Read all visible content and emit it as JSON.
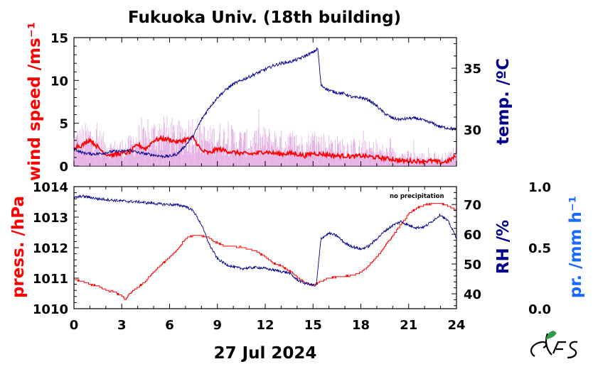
{
  "title": "Fukuoka Univ. (18th building)",
  "date_label": "27 Jul 2024",
  "note": "no precipitation",
  "colors": {
    "wind": "#ff0000",
    "wind_raw": "#dd99dd",
    "temp": "#00008b",
    "pressure": "#ff0000",
    "rh": "#00008b",
    "precip": "#1a6aff",
    "logo_green": "#2e9a4a"
  },
  "chart_data": [
    {
      "type": "line",
      "x_label": "",
      "x_range": [
        0,
        24
      ],
      "x_ticks": [
        0,
        3,
        6,
        9,
        12,
        15,
        18,
        21,
        24
      ],
      "grid": false,
      "legend": "none",
      "left_axis": {
        "label": "wind speed /ms⁻¹",
        "range": [
          0,
          15
        ],
        "ticks": [
          0,
          5,
          10,
          15
        ]
      },
      "right_axis": {
        "label": "temp. /ºC",
        "range": [
          27.0,
          37.5
        ],
        "ticks": [
          30,
          35
        ]
      },
      "series": [
        {
          "axis": "left",
          "style": "raw",
          "x": [
            0,
            0.5,
            1,
            1.5,
            2,
            2.5,
            3,
            3.5,
            4,
            4.5,
            5,
            5.5,
            6,
            6.5,
            7,
            7.5,
            8,
            8.5,
            9,
            9.5,
            10,
            10.5,
            11,
            11.5,
            12,
            12.5,
            13,
            13.5,
            14,
            14.5,
            15,
            15.5,
            16,
            16.5,
            17,
            17.5,
            18,
            18.5,
            19,
            19.5,
            20,
            20.5,
            21,
            21.5,
            22,
            22.5,
            23,
            23.5,
            24
          ],
          "values": [
            3.2,
            3.5,
            3.8,
            3.4,
            2.6,
            2.2,
            2.4,
            2.6,
            3.6,
            3.2,
            4.0,
            4.4,
            4.2,
            3.8,
            4.2,
            4.6,
            3.8,
            3.4,
            3.8,
            3.6,
            3.4,
            3.2,
            3.0,
            3.2,
            3.4,
            3.2,
            3.0,
            3.1,
            2.8,
            2.6,
            3.2,
            3.0,
            2.8,
            2.6,
            2.4,
            2.4,
            2.3,
            2.1,
            2.0,
            1.8,
            1.6,
            1.4,
            1.3,
            1.2,
            1.2,
            1.1,
            1.0,
            1.2,
            2.0
          ]
        },
        {
          "axis": "left",
          "style": "mean",
          "x": [
            0,
            0.5,
            1,
            1.5,
            2,
            2.5,
            3,
            3.5,
            4,
            4.5,
            5,
            5.5,
            6,
            6.5,
            7,
            7.5,
            8,
            8.5,
            9,
            9.5,
            10,
            10.5,
            11,
            11.5,
            12,
            12.5,
            13,
            13.5,
            14,
            14.5,
            15,
            15.5,
            16,
            16.5,
            17,
            17.5,
            18,
            18.5,
            19,
            19.5,
            20,
            20.5,
            21,
            21.5,
            22,
            22.5,
            23,
            23.5,
            24
          ],
          "values": [
            2.3,
            2.4,
            3.1,
            2.2,
            1.4,
            1.3,
            1.5,
            1.6,
            2.5,
            2.0,
            3.0,
            3.2,
            3.1,
            2.8,
            3.1,
            3.3,
            1.8,
            1.5,
            2.0,
            1.8,
            1.6,
            1.5,
            1.4,
            1.5,
            1.7,
            1.5,
            1.4,
            1.5,
            1.4,
            1.2,
            1.5,
            1.4,
            1.3,
            1.2,
            1.2,
            1.1,
            1.2,
            1.1,
            1.0,
            0.9,
            0.8,
            0.6,
            0.6,
            0.6,
            0.6,
            0.6,
            0.4,
            0.6,
            1.2
          ]
        },
        {
          "axis": "right",
          "name": "temp. /ºC",
          "x": [
            0,
            0.5,
            1,
            1.5,
            2,
            2.5,
            3,
            3.5,
            4,
            4.5,
            5,
            5.5,
            6,
            6.5,
            7,
            7.5,
            8,
            8.5,
            9,
            9.5,
            10,
            10.5,
            11,
            11.5,
            12,
            12.5,
            13,
            13.5,
            14,
            14.5,
            15,
            15.3,
            15.5,
            16,
            16.5,
            17,
            17.5,
            18,
            18.5,
            19,
            19.5,
            20,
            20.5,
            21,
            21.5,
            22,
            22.5,
            23,
            23.5,
            24
          ],
          "values": [
            28.4,
            28.1,
            28.0,
            28.0,
            28.1,
            28.2,
            28.2,
            28.3,
            28.1,
            28.0,
            27.9,
            27.8,
            27.8,
            28.0,
            28.7,
            29.5,
            30.8,
            31.8,
            32.6,
            33.2,
            33.7,
            34.0,
            34.3,
            34.6,
            34.9,
            35.2,
            35.4,
            35.5,
            35.7,
            36.0,
            36.3,
            36.6,
            33.6,
            33.2,
            33.0,
            32.9,
            32.6,
            32.6,
            32.4,
            31.9,
            31.3,
            30.9,
            30.8,
            30.9,
            30.9,
            30.7,
            30.5,
            30.2,
            30.1,
            30.0
          ]
        }
      ]
    },
    {
      "type": "line",
      "x_label": "27 Jul 2024",
      "x_range": [
        0,
        24
      ],
      "x_ticks": [
        0,
        3,
        6,
        9,
        12,
        15,
        18,
        21,
        24
      ],
      "x_tick_labels": [
        "0",
        "3",
        "6",
        "9",
        "12",
        "15",
        "18",
        "21",
        "24"
      ],
      "grid": false,
      "legend": "none",
      "left_axis": {
        "label": "press. /hPa",
        "range": [
          1010,
          1014
        ],
        "ticks": [
          1010,
          1011,
          1012,
          1013,
          1014
        ]
      },
      "right_axis": {
        "label": "RH /%",
        "range": [
          35,
          76
        ],
        "ticks": [
          40,
          50,
          60,
          70
        ]
      },
      "far_right_axis": {
        "label": "pr. /mm h⁻¹",
        "range": [
          0,
          1
        ],
        "ticks": [
          "0.0",
          "0.5",
          "1.0"
        ]
      },
      "series": [
        {
          "axis": "left",
          "name": "press. /hPa",
          "x": [
            0,
            0.5,
            1,
            1.5,
            2,
            2.5,
            3,
            3.2,
            3.5,
            4,
            4.5,
            5,
            5.5,
            6,
            6.5,
            7,
            7.5,
            8,
            8.5,
            9,
            9.5,
            10,
            10.5,
            11,
            11.5,
            12,
            12.5,
            13,
            13.5,
            14,
            14.5,
            15,
            15.5,
            16,
            16.5,
            17,
            17.5,
            18,
            18.5,
            19,
            19.5,
            20,
            20.5,
            21,
            21.5,
            22,
            22.5,
            23,
            23.5,
            24
          ],
          "values": [
            1010.95,
            1010.9,
            1010.8,
            1010.75,
            1010.6,
            1010.55,
            1010.4,
            1010.3,
            1010.5,
            1010.7,
            1010.9,
            1011.2,
            1011.45,
            1011.7,
            1011.95,
            1012.3,
            1012.4,
            1012.4,
            1012.3,
            1012.15,
            1012.05,
            1012.05,
            1012.0,
            1011.95,
            1011.85,
            1011.7,
            1011.5,
            1011.4,
            1011.25,
            1011.05,
            1010.85,
            1010.75,
            1010.9,
            1011.0,
            1011.05,
            1011.05,
            1011.1,
            1011.2,
            1011.4,
            1011.7,
            1012.05,
            1012.4,
            1012.75,
            1013.1,
            1013.3,
            1013.4,
            1013.45,
            1013.45,
            1013.35,
            1013.25
          ]
        },
        {
          "axis": "right",
          "name": "RH /%",
          "x": [
            0,
            0.5,
            1,
            1.5,
            2,
            2.5,
            3,
            3.5,
            4,
            4.5,
            5,
            5.5,
            6,
            6.5,
            7,
            7.5,
            8,
            8.5,
            9,
            9.5,
            10,
            10.5,
            11,
            11.5,
            12,
            12.5,
            13,
            13.5,
            14,
            14.5,
            15,
            15.2,
            15.5,
            16,
            16.5,
            17,
            17.5,
            18,
            18.5,
            19,
            19.5,
            20,
            20.5,
            21,
            21.5,
            22,
            22.5,
            23,
            23.5,
            24
          ],
          "values": [
            72.2,
            72.8,
            72.4,
            71.9,
            71.7,
            71.4,
            71.2,
            71.0,
            70.9,
            70.6,
            70.4,
            70.1,
            70.0,
            69.8,
            69.4,
            67.8,
            63.2,
            56.5,
            51.8,
            50.0,
            49.0,
            48.5,
            48.7,
            48.9,
            48.5,
            48.0,
            47.5,
            47.0,
            44.7,
            43.5,
            43.0,
            42.5,
            58.6,
            60.3,
            59.5,
            57.0,
            55.8,
            55.0,
            56.0,
            58.5,
            61.0,
            63.0,
            64.3,
            63.0,
            62.2,
            62.5,
            64.5,
            66.6,
            64.2,
            58.8
          ]
        }
      ]
    }
  ]
}
